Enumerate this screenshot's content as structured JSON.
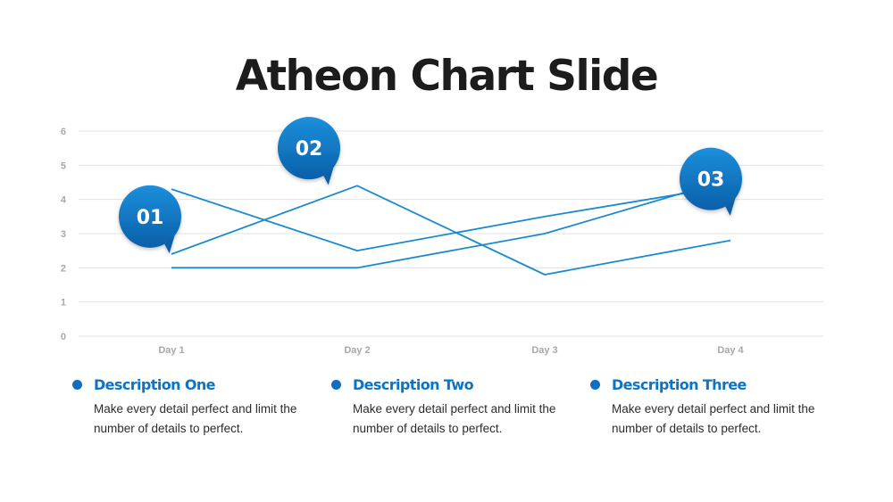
{
  "slide": {
    "title": "Atheon Chart Slide"
  },
  "colors": {
    "line": "#1a8ad0",
    "marker_light": "#1c8fdb",
    "marker_dark": "#0a5fa8",
    "grid": "#e3e3e3",
    "tick": "#a8a8a8"
  },
  "chart_data": {
    "type": "line",
    "categories": [
      "Day 1",
      "Day 2",
      "Day 3",
      "Day 4"
    ],
    "ylim": [
      0,
      6
    ],
    "yticks": [
      0,
      1,
      2,
      3,
      4,
      5,
      6
    ],
    "grid": true,
    "legend": "none",
    "xlabel": "",
    "ylabel": "",
    "series": [
      {
        "values": [
          4.3,
          2.5,
          3.5,
          4.4
        ]
      },
      {
        "values": [
          2.4,
          4.4,
          1.8,
          2.8
        ]
      },
      {
        "values": [
          2.0,
          2.0,
          3.0,
          4.6
        ]
      }
    ],
    "markers": [
      {
        "label": "01",
        "category": "Day 1",
        "value": 3.5
      },
      {
        "label": "02",
        "category": "Day 2",
        "value": 5.5
      },
      {
        "label": "03",
        "category": "Day 4",
        "value": 4.6
      }
    ]
  },
  "descriptions": [
    {
      "title": "Description One",
      "text": "Make every detail perfect and limit the number of details to perfect."
    },
    {
      "title": "Description Two",
      "text": "Make every detail perfect and limit the number of details to perfect."
    },
    {
      "title": "Description Three",
      "text": "Make every detail perfect and limit the number of details to perfect."
    }
  ]
}
